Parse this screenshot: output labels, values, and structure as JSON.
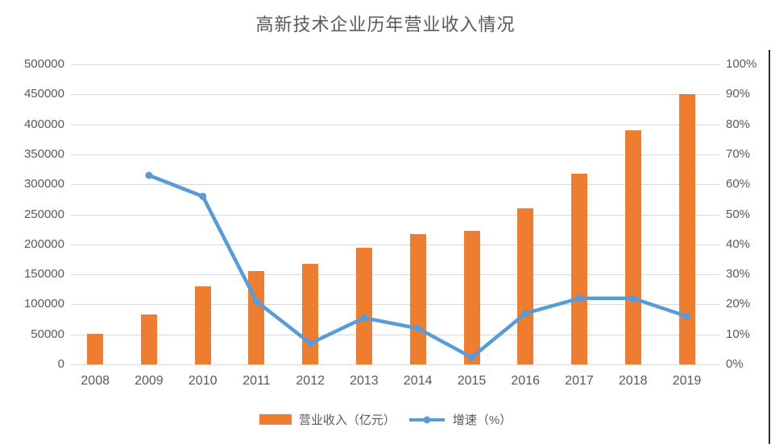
{
  "chart_data": {
    "type": "bar+line combo",
    "title": "高新技术企业历年营业收入情况",
    "categories": [
      "2008",
      "2009",
      "2010",
      "2011",
      "2012",
      "2013",
      "2014",
      "2015",
      "2016",
      "2017",
      "2018",
      "2019"
    ],
    "series": [
      {
        "name": "营业收入（亿元）",
        "type": "bar",
        "axis": "left",
        "values": [
          51000,
          83000,
          130000,
          156000,
          167000,
          194000,
          217000,
          222000,
          260000,
          318000,
          390000,
          450000
        ]
      },
      {
        "name": "增速（%）",
        "type": "line",
        "axis": "right",
        "values": [
          null,
          63,
          56,
          21,
          7,
          15.5,
          12,
          2.3,
          17,
          22,
          22,
          16
        ]
      }
    ],
    "left_axis": {
      "min": 0,
      "max": 500000,
      "step": 50000,
      "ticks": [
        "0",
        "50000",
        "100000",
        "150000",
        "200000",
        "250000",
        "300000",
        "350000",
        "400000",
        "450000",
        "500000"
      ]
    },
    "right_axis": {
      "min": 0,
      "max": 100,
      "step": 10,
      "ticks": [
        "0%",
        "10%",
        "20%",
        "30%",
        "40%",
        "50%",
        "60%",
        "70%",
        "80%",
        "90%",
        "100%"
      ]
    },
    "grid": true,
    "legend_position": "bottom"
  },
  "colors": {
    "bar": "#ED7D31",
    "line": "#5B9BD5",
    "gridline": "#D9D9D9",
    "axis_text": "#595959",
    "title_text": "#595959",
    "edge_border": "#2E2E2E",
    "background": "#FFFFFF"
  }
}
